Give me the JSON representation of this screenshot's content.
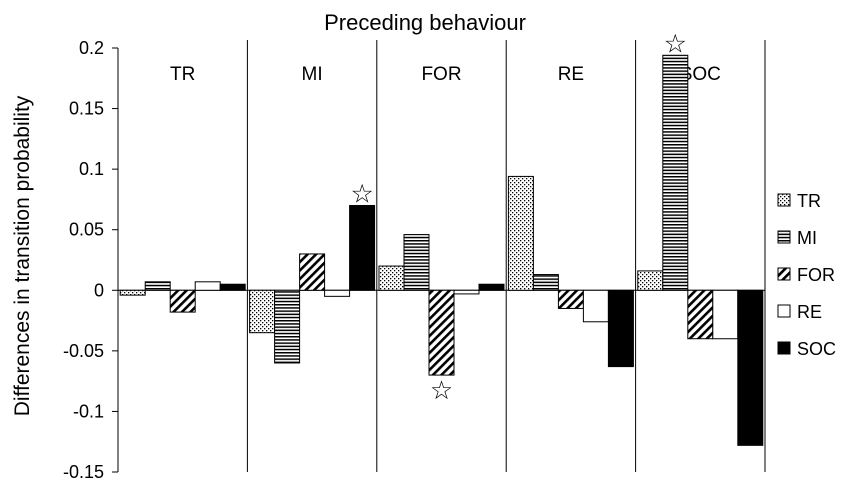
{
  "chart_data": {
    "type": "bar",
    "title": "Preceding behaviour",
    "ylabel": "Differences in transition probability",
    "xlabel": "",
    "ylim": [
      -0.15,
      0.2
    ],
    "yticks": [
      "0.2",
      "0.15",
      "0.1",
      "0.05",
      "0",
      "-0.05",
      "-0.1",
      "-0.15"
    ],
    "ytick_values": [
      0.2,
      0.15,
      0.1,
      0.05,
      0,
      -0.05,
      -0.1,
      -0.15
    ],
    "groups": [
      "TR",
      "MI",
      "FOR",
      "RE",
      "SOC"
    ],
    "legend_position": "right",
    "series": [
      {
        "name": "TR",
        "pattern": "dots",
        "values": [
          -0.004,
          -0.035,
          0.02,
          0.094,
          0.016
        ]
      },
      {
        "name": "MI",
        "pattern": "horizontal",
        "values": [
          0.007,
          -0.06,
          0.046,
          0.013,
          0.194
        ]
      },
      {
        "name": "FOR",
        "pattern": "diagonal",
        "values": [
          -0.018,
          0.03,
          -0.07,
          -0.015,
          -0.04
        ]
      },
      {
        "name": "RE",
        "pattern": "white",
        "values": [
          0.007,
          -0.005,
          -0.003,
          -0.026,
          -0.04
        ]
      },
      {
        "name": "SOC",
        "pattern": "black",
        "values": [
          0.005,
          0.07,
          0.005,
          -0.063,
          -0.128
        ]
      }
    ],
    "significant_markers": [
      {
        "group": "MI",
        "series": "SOC",
        "symbol": "☆"
      },
      {
        "group": "FOR",
        "series": "FOR",
        "symbol": "☆"
      },
      {
        "group": "SOC",
        "series": "MI",
        "symbol": "☆"
      }
    ]
  }
}
